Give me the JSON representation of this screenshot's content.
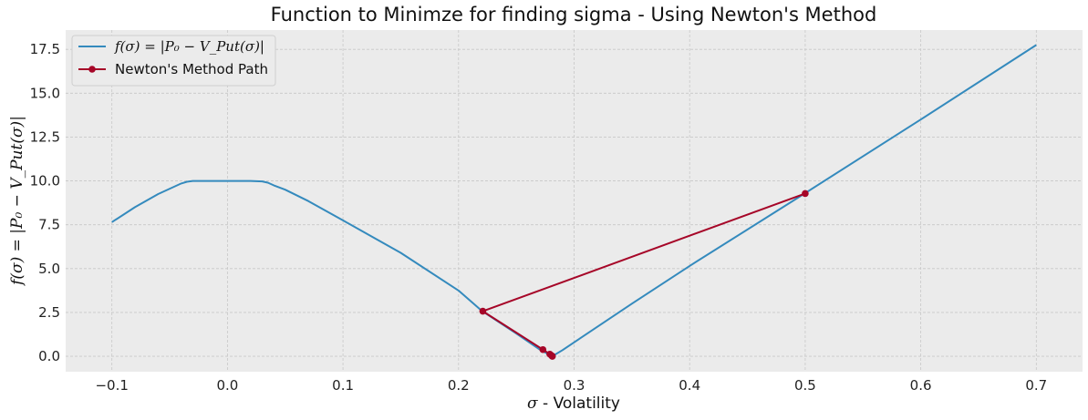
{
  "chart_data": {
    "type": "line",
    "title": "Function to Minimze for finding sigma - Using Newton's Method",
    "xlabel_symbol": "σ",
    "xlabel": " - Volatility",
    "ylabel": "f(σ) = |P₀ − V_Put(σ)|",
    "xlim": [
      -0.14,
      0.74
    ],
    "ylim": [
      -0.88,
      18.6
    ],
    "xticks": [
      "−0.1",
      "0.0",
      "0.1",
      "0.2",
      "0.3",
      "0.4",
      "0.5",
      "0.6",
      "0.7"
    ],
    "xtick_values": [
      -0.1,
      0.0,
      0.1,
      0.2,
      0.3,
      0.4,
      0.5,
      0.6,
      0.7
    ],
    "yticks": [
      "0.0",
      "2.5",
      "5.0",
      "7.5",
      "10.0",
      "12.5",
      "15.0",
      "17.5"
    ],
    "ytick_values": [
      0.0,
      2.5,
      5.0,
      7.5,
      10.0,
      12.5,
      15.0,
      17.5
    ],
    "grid": true,
    "legend_position": "top-left",
    "series": [
      {
        "name": "f(σ) = |P₀ − V_Put(σ)|",
        "color": "#348abd",
        "marker": "none",
        "x": [
          -0.1,
          -0.08,
          -0.06,
          -0.04,
          -0.035,
          -0.03,
          -0.02,
          0.0,
          0.02,
          0.03,
          0.035,
          0.04,
          0.05,
          0.07,
          0.1,
          0.15,
          0.2,
          0.22,
          0.25,
          0.27,
          0.281,
          0.29,
          0.35,
          0.4,
          0.5,
          0.6,
          0.7
        ],
        "y": [
          7.65,
          8.5,
          9.25,
          9.85,
          9.95,
          10.0,
          10.0,
          10.0,
          10.0,
          9.97,
          9.9,
          9.75,
          9.5,
          8.85,
          7.75,
          5.9,
          3.75,
          2.6,
          1.3,
          0.4,
          0.0,
          0.35,
          3.0,
          5.15,
          9.3,
          13.5,
          17.75
        ]
      },
      {
        "name": "Newton's Method Path",
        "color": "#a60628",
        "marker": "circle",
        "x": [
          0.5,
          0.221,
          0.273,
          0.279,
          0.2805,
          0.281,
          0.2812
        ],
        "y": [
          9.28,
          2.57,
          0.38,
          0.12,
          0.04,
          0.01,
          0.0
        ]
      }
    ]
  }
}
